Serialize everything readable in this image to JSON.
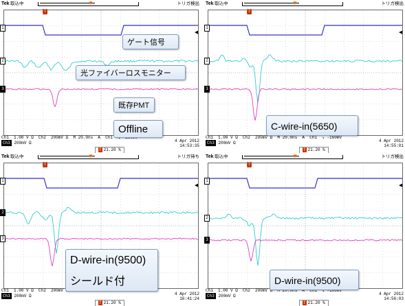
{
  "panels": [
    {
      "acq": "取込中",
      "trig": "トリガ検出",
      "ch_readout": "Ch1  1.00 V Ω  Ch2  200mV Ω  M 20.0ns  A  Ch1  ↘ -160mV",
      "ch3_readout": "200mV Ω",
      "trig_level": "21.20 %",
      "date": "4 Apr 2012",
      "time": "14:53:35",
      "ch2_marker_solid": false,
      "ch3_marker_solid": true,
      "labels": [
        "ゲート信号",
        "光ファイバーロスモニター",
        "既存PMT",
        "Offline"
      ]
    },
    {
      "acq": "取込中",
      "trig": "トリガ検出",
      "ch_readout": "Ch1  1.00 V Ω  Ch2  200mV Ω  M 20.0ns  A  Ch1  ↘ -160mV",
      "ch3_readout": "200mV Ω",
      "trig_level": "21.20 %",
      "date": "4 Apr 2012",
      "time": "14:55:01",
      "ch2_marker_solid": false,
      "ch3_marker_solid": true,
      "labels": [
        "C-wire-in(5650)"
      ]
    },
    {
      "acq": "取込中",
      "trig": "トリガ待ち",
      "ch_readout": "Ch1  1.00 V Ω  Ch2  200mV Ω  M 20.0ns  A  Ch1  ↘ -100mV",
      "ch3_readout": "200mV Ω",
      "trig_level": "21.20 %",
      "date": "4 Apr 2012",
      "time": "16:41:24",
      "ch2_marker_solid": true,
      "ch3_marker_solid": false,
      "labels": [
        "D-wire-in(9500)\nシールド付"
      ]
    },
    {
      "acq": "取込中",
      "trig": "トリガ検出",
      "ch_readout": "Ch1  1.00 V Ω  Ch2  200mV Ω  M 20.0ns  A  Ch1  ↘ -160mV",
      "ch3_readout": "200mV Ω",
      "trig_level": "21.20 %",
      "date": "4 Apr 2012",
      "time": "14:56:03",
      "ch2_marker_solid": false,
      "ch3_marker_solid": true,
      "labels": [
        "D-wire-in(9500)"
      ]
    }
  ],
  "common": {
    "tek": "Tek",
    "ch1_marker": "1",
    "ch2_marker": "2",
    "ch3_marker": "3",
    "trigger_t": "T"
  },
  "colors": {
    "ch1": "#3333cc",
    "ch2": "#33cccc",
    "ch3": "#e040c0"
  }
}
